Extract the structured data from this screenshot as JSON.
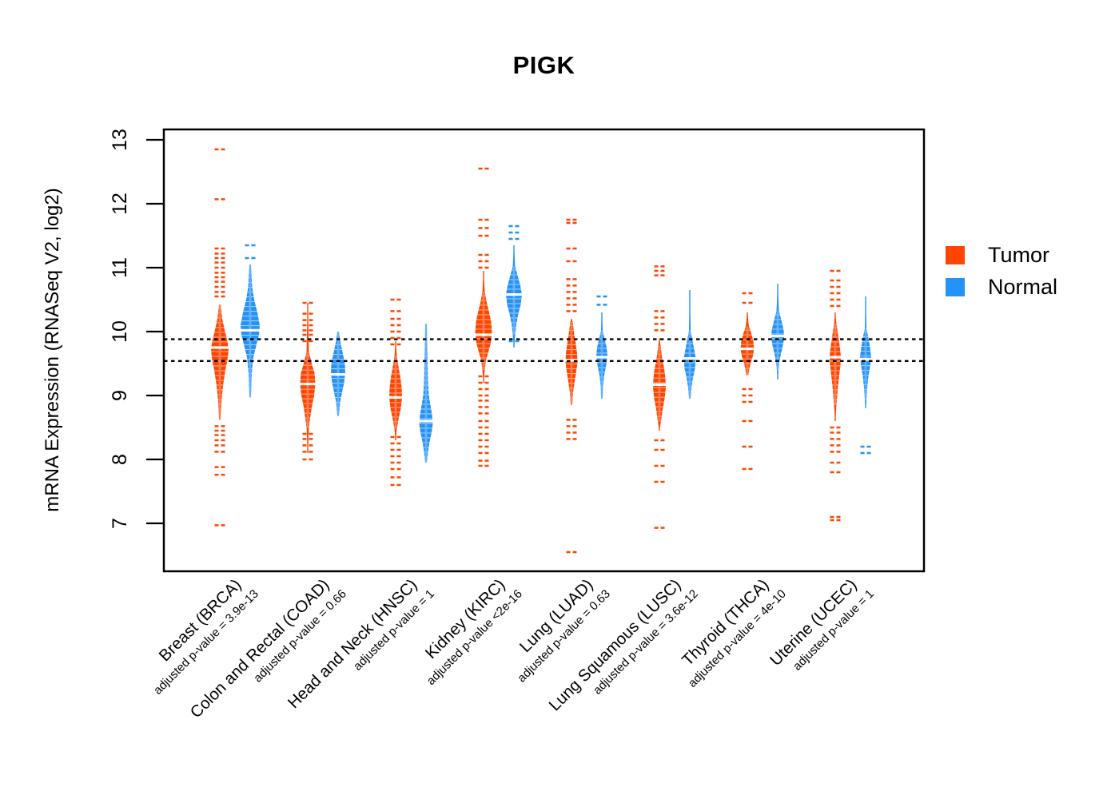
{
  "chart_data": {
    "type": "violin",
    "title": "PIGK",
    "ylabel": "mRNA Expression (RNASeq V2, log2)",
    "ylim": [
      6.3,
      13.2
    ],
    "y_ticks": [
      7,
      8,
      9,
      10,
      11,
      12,
      13
    ],
    "grid": false,
    "ref_lines": [
      9.88,
      9.54
    ],
    "ref_line_style": "black dotted horizontal",
    "colors": {
      "tumor": "#FF4500",
      "normal": "#2492F8"
    },
    "legend": {
      "position": "right",
      "entries": [
        {
          "label": "Tumor",
          "color": "#FF4500"
        },
        {
          "label": "Normal",
          "color": "#2492F8"
        }
      ]
    },
    "groups": [
      {
        "label": "Breast (BRCA)",
        "pvalue_label": "adjusted p-value = 3.9e-13",
        "tumor": {
          "median": 9.75,
          "spine": [
            8.62,
            10.42
          ],
          "shape": [
            [
              10.42,
              1
            ],
            [
              10.2,
              3
            ],
            [
              10.0,
              6.5
            ],
            [
              9.85,
              9.5
            ],
            [
              9.72,
              11
            ],
            [
              9.55,
              9.5
            ],
            [
              9.4,
              7
            ],
            [
              9.15,
              4
            ],
            [
              8.9,
              2
            ],
            [
              8.62,
              1
            ]
          ],
          "outliers": [
            12.85,
            12.07,
            11.3,
            11.22,
            11.15,
            11.08,
            11.0,
            10.92,
            10.85,
            10.78,
            10.7,
            10.62,
            10.55,
            8.52,
            8.45,
            8.38,
            8.3,
            8.22,
            8.12,
            7.88,
            7.76,
            6.97
          ]
        },
        "normal": {
          "median": 10.02,
          "spine": [
            8.97,
            11.05
          ],
          "shape": [
            [
              11.05,
              1
            ],
            [
              10.7,
              2.5
            ],
            [
              10.5,
              5
            ],
            [
              10.3,
              9
            ],
            [
              10.1,
              12
            ],
            [
              9.95,
              11
            ],
            [
              9.8,
              8
            ],
            [
              9.6,
              4
            ],
            [
              9.35,
              2
            ],
            [
              8.97,
              1
            ]
          ],
          "outliers": [
            11.35,
            11.15
          ]
        }
      },
      {
        "label": "Colon and Rectal (COAD)",
        "pvalue_label": "adjusted p-value = 0.66",
        "tumor": {
          "median": 9.18,
          "spine": [
            8.1,
            10.45
          ],
          "shape": [
            [
              9.68,
              1.5
            ],
            [
              9.5,
              5
            ],
            [
              9.35,
              8.5
            ],
            [
              9.18,
              9.5
            ],
            [
              9.0,
              8
            ],
            [
              8.85,
              5.5
            ],
            [
              8.65,
              3
            ],
            [
              8.5,
              1.5
            ]
          ],
          "outliers": [
            10.45,
            10.28,
            10.18,
            10.1,
            10.02,
            9.95,
            9.85,
            8.4,
            8.32,
            8.22,
            8.12,
            8.0
          ]
        },
        "normal": {
          "median": 9.33,
          "spine": [
            8.68,
            10.0
          ],
          "shape": [
            [
              10.0,
              1
            ],
            [
              9.82,
              3
            ],
            [
              9.65,
              6
            ],
            [
              9.5,
              8.5
            ],
            [
              9.35,
              9
            ],
            [
              9.2,
              7.5
            ],
            [
              9.05,
              5
            ],
            [
              8.9,
              2.5
            ],
            [
              8.68,
              1
            ]
          ],
          "outliers": []
        }
      },
      {
        "label": "Head and Neck (HNSC)",
        "pvalue_label": "adjusted p-value = 1",
        "tumor": {
          "median": 8.97,
          "spine": [
            8.3,
            9.85
          ],
          "shape": [
            [
              9.62,
              1.5
            ],
            [
              9.45,
              3.5
            ],
            [
              9.28,
              6
            ],
            [
              9.12,
              7.5
            ],
            [
              8.97,
              8
            ],
            [
              8.8,
              6.5
            ],
            [
              8.62,
              3.5
            ],
            [
              8.48,
              1.5
            ]
          ],
          "outliers": [
            10.5,
            10.32,
            10.2,
            10.1,
            10.0,
            9.9,
            9.8,
            8.35,
            8.25,
            8.15,
            8.05,
            7.95,
            7.85,
            7.72,
            7.6
          ]
        },
        "normal": {
          "median": 8.6,
          "spine": [
            7.95,
            10.12
          ],
          "shape": [
            [
              10.12,
              1
            ],
            [
              9.8,
              1.5
            ],
            [
              9.5,
              2
            ],
            [
              9.2,
              2.5
            ],
            [
              9.0,
              3.5
            ],
            [
              8.85,
              5.5
            ],
            [
              8.7,
              7.5
            ],
            [
              8.56,
              8.5
            ],
            [
              8.42,
              7
            ],
            [
              8.28,
              4.5
            ],
            [
              8.12,
              2.5
            ],
            [
              7.95,
              1
            ]
          ],
          "outliers": []
        }
      },
      {
        "label": "Kidney (KIRC)",
        "pvalue_label": "adjusted p-value <2e-16",
        "tumor": {
          "median": 9.95,
          "spine": [
            9.2,
            10.95
          ],
          "shape": [
            [
              10.62,
              1.5
            ],
            [
              10.45,
              4
            ],
            [
              10.3,
              7
            ],
            [
              10.15,
              9.5
            ],
            [
              9.98,
              10.5
            ],
            [
              9.82,
              9
            ],
            [
              9.68,
              6
            ],
            [
              9.55,
              3
            ],
            [
              9.4,
              1.5
            ]
          ],
          "outliers": [
            12.55,
            11.75,
            11.62,
            11.5,
            11.2,
            11.1,
            11.0,
            9.3,
            9.2,
            9.1,
            9.0,
            8.92,
            8.82,
            8.72,
            8.6,
            8.5,
            8.4,
            8.3,
            8.2,
            8.1,
            7.98,
            7.9
          ]
        },
        "normal": {
          "median": 10.58,
          "spine": [
            9.75,
            11.35
          ],
          "shape": [
            [
              11.02,
              1.5
            ],
            [
              10.88,
              4.5
            ],
            [
              10.72,
              8
            ],
            [
              10.58,
              10
            ],
            [
              10.42,
              8.5
            ],
            [
              10.28,
              5.5
            ],
            [
              10.12,
              3
            ],
            [
              9.95,
              1.5
            ]
          ],
          "outliers": [
            11.65,
            11.55,
            11.45,
            9.85
          ]
        }
      },
      {
        "label": "Lung (LUAD)",
        "pvalue_label": "adjusted p-value = 0.63",
        "tumor": {
          "median": 9.55,
          "spine": [
            8.85,
            10.2
          ],
          "shape": [
            [
              10.15,
              1.5
            ],
            [
              9.95,
              3.5
            ],
            [
              9.8,
              5.5
            ],
            [
              9.65,
              7
            ],
            [
              9.52,
              7.5
            ],
            [
              9.38,
              6
            ],
            [
              9.22,
              4
            ],
            [
              9.05,
              2
            ],
            [
              8.85,
              1
            ]
          ],
          "outliers": [
            11.75,
            11.7,
            11.3,
            11.1,
            10.82,
            10.72,
            10.62,
            10.52,
            10.42,
            10.32,
            8.62,
            8.52,
            8.42,
            8.32,
            6.55
          ]
        },
        "normal": {
          "median": 9.6,
          "spine": [
            8.95,
            10.3
          ],
          "shape": [
            [
              10.02,
              1
            ],
            [
              9.88,
              3.5
            ],
            [
              9.75,
              6
            ],
            [
              9.62,
              7
            ],
            [
              9.48,
              5.5
            ],
            [
              9.32,
              3
            ],
            [
              9.15,
              1.5
            ],
            [
              8.95,
              1
            ]
          ],
          "outliers": [
            10.55,
            10.42
          ]
        }
      },
      {
        "label": "Lung Squamous (LUSC)",
        "pvalue_label": "adjusted p-value = 3.6e-12",
        "tumor": {
          "median": 9.17,
          "spine": [
            8.45,
            9.9
          ],
          "shape": [
            [
              9.78,
              1.5
            ],
            [
              9.58,
              3.5
            ],
            [
              9.42,
              6
            ],
            [
              9.27,
              7.5
            ],
            [
              9.12,
              8
            ],
            [
              8.95,
              6.5
            ],
            [
              8.78,
              4
            ],
            [
              8.6,
              2
            ]
          ],
          "outliers": [
            11.02,
            10.95,
            10.88,
            10.32,
            10.22,
            10.12,
            10.02,
            8.3,
            8.15,
            7.9,
            7.65,
            6.93
          ]
        },
        "normal": {
          "median": 9.58,
          "spine": [
            8.95,
            10.65
          ],
          "shape": [
            [
              10.02,
              1
            ],
            [
              9.88,
              3
            ],
            [
              9.72,
              5.5
            ],
            [
              9.58,
              7.5
            ],
            [
              9.42,
              6.5
            ],
            [
              9.28,
              4
            ],
            [
              9.12,
              2
            ],
            [
              8.95,
              1
            ]
          ],
          "outliers": []
        }
      },
      {
        "label": "Thyroid (THCA)",
        "pvalue_label": "adjusted p-value = 4e-10",
        "tumor": {
          "median": 9.73,
          "spine": [
            9.32,
            10.3
          ],
          "shape": [
            [
              10.08,
              2
            ],
            [
              9.97,
              5
            ],
            [
              9.85,
              7.5
            ],
            [
              9.73,
              8.5
            ],
            [
              9.62,
              7
            ],
            [
              9.52,
              4.5
            ],
            [
              9.42,
              2.5
            ],
            [
              9.32,
              1.5
            ]
          ],
          "outliers": [
            10.6,
            10.45,
            9.1,
            9.0,
            8.9,
            8.6,
            8.2,
            7.85
          ]
        },
        "normal": {
          "median": 9.93,
          "spine": [
            9.25,
            10.75
          ],
          "shape": [
            [
              10.32,
              1.5
            ],
            [
              10.18,
              4.5
            ],
            [
              10.02,
              7.5
            ],
            [
              9.9,
              8
            ],
            [
              9.78,
              6.5
            ],
            [
              9.65,
              4
            ],
            [
              9.52,
              2
            ],
            [
              9.38,
              1
            ]
          ],
          "outliers": []
        }
      },
      {
        "label": "Uterine (UCEC)",
        "pvalue_label": "adjusted p-value = 1",
        "tumor": {
          "median": 9.6,
          "spine": [
            8.6,
            10.3
          ],
          "shape": [
            [
              10.12,
              1.5
            ],
            [
              9.95,
              3.5
            ],
            [
              9.78,
              5.5
            ],
            [
              9.62,
              7
            ],
            [
              9.48,
              6.5
            ],
            [
              9.32,
              5
            ],
            [
              9.15,
              3.5
            ],
            [
              9.0,
              2.5
            ],
            [
              8.85,
              1.5
            ]
          ],
          "outliers": [
            10.95,
            10.8,
            10.7,
            10.6,
            10.5,
            10.4,
            8.5,
            8.42,
            8.32,
            8.22,
            8.12,
            7.95,
            7.8,
            7.1,
            7.05
          ]
        },
        "normal": {
          "median": 9.57,
          "spine": [
            8.8,
            10.55
          ],
          "shape": [
            [
              10.05,
              1
            ],
            [
              9.9,
              3.5
            ],
            [
              9.75,
              5.5
            ],
            [
              9.6,
              7
            ],
            [
              9.45,
              5.5
            ],
            [
              9.3,
              3.5
            ],
            [
              9.12,
              2
            ],
            [
              8.92,
              1
            ]
          ],
          "outliers": [
            8.2,
            8.1
          ]
        }
      }
    ]
  }
}
